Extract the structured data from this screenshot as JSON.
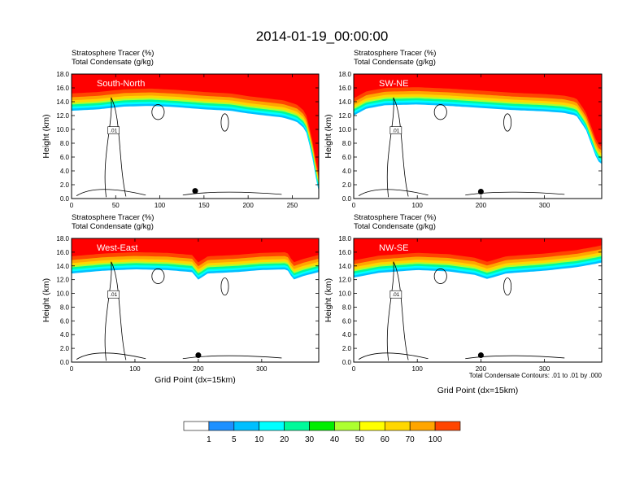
{
  "title": "2014-01-19_00:00:00",
  "footnote": "Total Condensate Contours: .01 to .01 by .000",
  "colorbar": {
    "levels": [
      "1",
      "5",
      "10",
      "20",
      "30",
      "40",
      "50",
      "60",
      "70",
      "100"
    ],
    "colors": [
      "#ffffff",
      "#1e90ff",
      "#00bfff",
      "#00ffff",
      "#00fa9a",
      "#00ee00",
      "#adff2f",
      "#ffff00",
      "#ffd700",
      "#ffa500",
      "#ff4500",
      "#ff0000"
    ]
  },
  "chart_data": [
    {
      "type": "heatmap",
      "region": "South-North",
      "title_lines": [
        "Stratosphere Tracer   (%)",
        "Total Condensate   (g/kg)"
      ],
      "ylabel": "Height (km)",
      "xlabel": "",
      "xlim": [
        0,
        280
      ],
      "ylim": [
        0,
        18
      ],
      "xticks": [
        "0",
        "50",
        "100",
        "150",
        "200",
        "250"
      ],
      "yticks": [
        "0.0",
        "2.0",
        "4.0",
        "6.0",
        "8.0",
        "10.0",
        "12.0",
        "14.0",
        "16.0",
        "18.0"
      ],
      "tropopause_km": [
        [
          0,
          15.2
        ],
        [
          30,
          15.4
        ],
        [
          60,
          15.8
        ],
        [
          90,
          15.9
        ],
        [
          120,
          15.7
        ],
        [
          150,
          15.4
        ],
        [
          180,
          15.2
        ],
        [
          200,
          14.8
        ],
        [
          220,
          14.5
        ],
        [
          240,
          14.2
        ],
        [
          255,
          13.6
        ],
        [
          265,
          12.5
        ],
        [
          272,
          9
        ],
        [
          276,
          6
        ],
        [
          280,
          3.5
        ]
      ],
      "marker": {
        "x": 140,
        "y": 1.1
      },
      "contour_label": ".01"
    },
    {
      "type": "heatmap",
      "region": "SW-NE",
      "title_lines": [
        "Stratosphere Tracer   (%)",
        "Total Condensate   (g/kg)"
      ],
      "ylabel": "Height (km)",
      "xlabel": "",
      "xlim": [
        0,
        390
      ],
      "ylim": [
        0,
        18
      ],
      "xticks": [
        "0",
        "100",
        "200",
        "300"
      ],
      "yticks": [
        "0.0",
        "2.0",
        "4.0",
        "6.0",
        "8.0",
        "10.0",
        "12.0",
        "14.0",
        "16.0",
        "18.0"
      ],
      "tropopause_km": [
        [
          0,
          14.5
        ],
        [
          20,
          15.5
        ],
        [
          50,
          16.0
        ],
        [
          100,
          16.1
        ],
        [
          150,
          15.9
        ],
        [
          200,
          15.6
        ],
        [
          250,
          15.3
        ],
        [
          300,
          15.1
        ],
        [
          330,
          14.9
        ],
        [
          350,
          14.5
        ],
        [
          365,
          12.5
        ],
        [
          375,
          10
        ],
        [
          383,
          8
        ],
        [
          390,
          7.5
        ]
      ],
      "marker": {
        "x": 200,
        "y": 1.0
      },
      "contour_label": ".01"
    },
    {
      "type": "heatmap",
      "region": "West-East",
      "title_lines": [
        "Stratosphere Tracer   (%)",
        "Total Condensate   (g/kg)"
      ],
      "ylabel": "Height (km)",
      "xlabel": "Grid Point (dx=15km)",
      "xlim": [
        0,
        390
      ],
      "ylim": [
        0,
        18
      ],
      "xticks": [
        "0",
        "100",
        "200",
        "300"
      ],
      "yticks": [
        "0.0",
        "2.0",
        "4.0",
        "6.0",
        "8.0",
        "10.0",
        "12.0",
        "14.0",
        "16.0",
        "18.0"
      ],
      "tropopause_km": [
        [
          0,
          15.4
        ],
        [
          50,
          15.8
        ],
        [
          100,
          16.0
        ],
        [
          150,
          15.9
        ],
        [
          190,
          15.6
        ],
        [
          200,
          14.5
        ],
        [
          215,
          15.4
        ],
        [
          260,
          15.6
        ],
        [
          300,
          15.9
        ],
        [
          340,
          16.0
        ],
        [
          350,
          14.5
        ],
        [
          365,
          15.0
        ],
        [
          390,
          15.6
        ]
      ],
      "marker": {
        "x": 200,
        "y": 1.0
      },
      "contour_label": ".01"
    },
    {
      "type": "heatmap",
      "region": "NW-SE",
      "title_lines": [
        "Stratosphere Tracer   (%)",
        "Total Condensate   (g/kg)"
      ],
      "ylabel": "Height (km)",
      "xlabel": "Grid Point (dx=15km)",
      "xlim": [
        0,
        390
      ],
      "ylim": [
        0,
        18
      ],
      "xticks": [
        "0",
        "100",
        "200",
        "300"
      ],
      "yticks": [
        "0.0",
        "2.0",
        "4.0",
        "6.0",
        "8.0",
        "10.0",
        "12.0",
        "14.0",
        "16.0",
        "18.0"
      ],
      "tropopause_km": [
        [
          0,
          14.8
        ],
        [
          40,
          15.5
        ],
        [
          100,
          15.9
        ],
        [
          150,
          15.7
        ],
        [
          190,
          15.2
        ],
        [
          210,
          14.6
        ],
        [
          240,
          15.4
        ],
        [
          300,
          15.8
        ],
        [
          350,
          16.3
        ],
        [
          380,
          16.8
        ],
        [
          390,
          17.0
        ]
      ],
      "marker": {
        "x": 200,
        "y": 1.0
      },
      "contour_label": ".01"
    }
  ]
}
